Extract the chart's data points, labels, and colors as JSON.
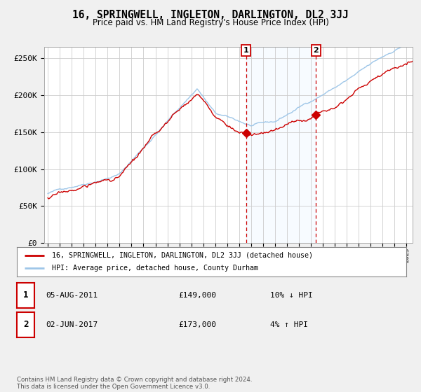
{
  "title": "16, SPRINGWELL, INGLETON, DARLINGTON, DL2 3JJ",
  "subtitle": "Price paid vs. HM Land Registry's House Price Index (HPI)",
  "ylabel_ticks": [
    "£0",
    "£50K",
    "£100K",
    "£150K",
    "£200K",
    "£250K"
  ],
  "ytick_vals": [
    0,
    50000,
    100000,
    150000,
    200000,
    250000
  ],
  "ylim": [
    0,
    265000
  ],
  "xlim_start": 1994.7,
  "xlim_end": 2025.5,
  "hpi_color": "#9ec6e8",
  "price_color": "#cc0000",
  "sale1_date": 2011.58,
  "sale1_price": 149000,
  "sale2_date": 2017.42,
  "sale2_price": 173000,
  "shade_color": "#ddeeff",
  "dashed_color": "#cc0000",
  "legend_label1": "16, SPRINGWELL, INGLETON, DARLINGTON, DL2 3JJ (detached house)",
  "legend_label2": "HPI: Average price, detached house, County Durham",
  "table_rows": [
    {
      "num": "1",
      "date": "05-AUG-2011",
      "price": "£149,000",
      "change": "10% ↓ HPI"
    },
    {
      "num": "2",
      "date": "02-JUN-2017",
      "price": "£173,000",
      "change": "4% ↑ HPI"
    }
  ],
  "footnote": "Contains HM Land Registry data © Crown copyright and database right 2024.\nThis data is licensed under the Open Government Licence v3.0.",
  "background_color": "#f0f0f0",
  "plot_bg_color": "#ffffff",
  "grid_color": "#cccccc"
}
